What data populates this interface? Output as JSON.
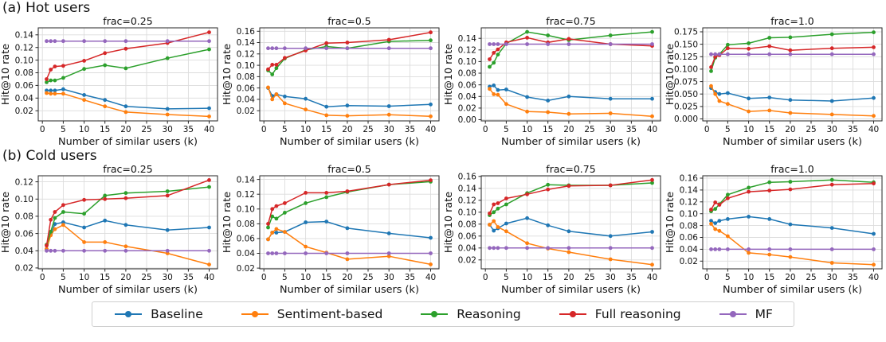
{
  "page_background": "#ffffff",
  "sections": [
    {
      "label": "(a) Hot users"
    },
    {
      "label": "(b) Cold users"
    }
  ],
  "legend": {
    "items": [
      {
        "label": "Baseline",
        "color": "#1f77b4"
      },
      {
        "label": "Sentiment-based",
        "color": "#ff7f0e"
      },
      {
        "label": "Reasoning",
        "color": "#2ca02c"
      },
      {
        "label": "Full reasoning",
        "color": "#d62728"
      },
      {
        "label": "MF",
        "color": "#9467bd"
      }
    ]
  },
  "chart_data": [
    {
      "type": "line",
      "section": "Hot users",
      "title": "frac=0.25",
      "xlabel": "Number of similar users (k)",
      "ylabel": "Hit@10 rate",
      "x": [
        1,
        2,
        3,
        5,
        10,
        15,
        20,
        30,
        40
      ],
      "xticks": [
        0,
        5,
        10,
        15,
        20,
        25,
        30,
        35,
        40
      ],
      "xlim": [
        -1,
        42
      ],
      "yticks": [
        0.02,
        0.04,
        0.06,
        0.08,
        0.1,
        0.12,
        0.14
      ],
      "ylim": [
        0.004,
        0.151
      ],
      "ytick_decimals": 2,
      "grid": true,
      "series": [
        {
          "name": "Baseline",
          "values": [
            0.052,
            0.052,
            0.052,
            0.054,
            0.045,
            0.037,
            0.027,
            0.023,
            0.024
          ]
        },
        {
          "name": "Sentiment-based",
          "values": [
            0.048,
            0.047,
            0.047,
            0.047,
            0.037,
            0.027,
            0.018,
            0.014,
            0.011
          ]
        },
        {
          "name": "Reasoning",
          "values": [
            0.065,
            0.068,
            0.068,
            0.072,
            0.086,
            0.092,
            0.087,
            0.103,
            0.117
          ]
        },
        {
          "name": "Full reasoning",
          "values": [
            0.07,
            0.085,
            0.09,
            0.091,
            0.099,
            0.111,
            0.118,
            0.127,
            0.144
          ]
        },
        {
          "name": "MF",
          "values": [
            0.13,
            0.13,
            0.13,
            0.13,
            0.13,
            0.13,
            0.13,
            0.13,
            0.13
          ]
        }
      ]
    },
    {
      "type": "line",
      "section": "Hot users",
      "title": "frac=0.5",
      "xlabel": "Number of similar users (k)",
      "ylabel": "Hit@10 rate",
      "x": [
        1,
        2,
        3,
        5,
        10,
        15,
        20,
        30,
        40
      ],
      "xticks": [
        0,
        5,
        10,
        15,
        20,
        25,
        30,
        35,
        40
      ],
      "xlim": [
        -1,
        42
      ],
      "yticks": [
        0.02,
        0.04,
        0.06,
        0.08,
        0.1,
        0.12,
        0.14,
        0.16
      ],
      "ylim": [
        0.002,
        0.166
      ],
      "ytick_decimals": 2,
      "grid": true,
      "series": [
        {
          "name": "Baseline",
          "values": [
            0.06,
            0.046,
            0.049,
            0.045,
            0.041,
            0.027,
            0.029,
            0.028,
            0.031
          ]
        },
        {
          "name": "Sentiment-based",
          "values": [
            0.061,
            0.04,
            0.049,
            0.033,
            0.022,
            0.012,
            0.011,
            0.013,
            0.01
          ]
        },
        {
          "name": "Reasoning",
          "values": [
            0.091,
            0.084,
            0.095,
            0.112,
            0.127,
            0.133,
            0.13,
            0.142,
            0.144
          ]
        },
        {
          "name": "Full reasoning",
          "values": [
            0.093,
            0.101,
            0.101,
            0.113,
            0.126,
            0.139,
            0.14,
            0.145,
            0.158
          ]
        },
        {
          "name": "MF",
          "values": [
            0.13,
            0.13,
            0.13,
            0.13,
            0.13,
            0.13,
            0.13,
            0.13,
            0.13
          ]
        }
      ]
    },
    {
      "type": "line",
      "section": "Hot users",
      "title": "frac=0.75",
      "xlabel": "Number of similar users (k)",
      "ylabel": "Hit@10 rate",
      "x": [
        1,
        2,
        3,
        5,
        10,
        15,
        20,
        30,
        40
      ],
      "xticks": [
        0,
        5,
        10,
        15,
        20,
        25,
        30,
        35,
        40
      ],
      "xlim": [
        -1,
        42
      ],
      "yticks": [
        0.0,
        0.02,
        0.04,
        0.06,
        0.08,
        0.1,
        0.12,
        0.14
      ],
      "ylim": [
        -0.002,
        0.158
      ],
      "ytick_decimals": 2,
      "grid": true,
      "series": [
        {
          "name": "Baseline",
          "values": [
            0.057,
            0.059,
            0.051,
            0.052,
            0.039,
            0.033,
            0.04,
            0.036,
            0.036
          ]
        },
        {
          "name": "Sentiment-based",
          "values": [
            0.053,
            0.044,
            0.043,
            0.027,
            0.014,
            0.013,
            0.01,
            0.011,
            0.006
          ]
        },
        {
          "name": "Reasoning",
          "values": [
            0.091,
            0.098,
            0.112,
            0.131,
            0.151,
            0.145,
            0.137,
            0.145,
            0.151
          ]
        },
        {
          "name": "Full reasoning",
          "values": [
            0.104,
            0.115,
            0.121,
            0.133,
            0.141,
            0.133,
            0.139,
            0.13,
            0.127
          ]
        },
        {
          "name": "MF",
          "values": [
            0.13,
            0.13,
            0.13,
            0.13,
            0.13,
            0.13,
            0.13,
            0.13,
            0.13
          ]
        }
      ]
    },
    {
      "type": "line",
      "section": "Hot users",
      "title": "frac=1.0",
      "xlabel": "Number of similar users (k)",
      "ylabel": "Hit@10 rate",
      "x": [
        1,
        2,
        3,
        5,
        10,
        15,
        20,
        30,
        40
      ],
      "xticks": [
        0,
        5,
        10,
        15,
        20,
        25,
        30,
        35,
        40
      ],
      "xlim": [
        -1,
        42
      ],
      "yticks": [
        0.0,
        0.025,
        0.05,
        0.075,
        0.1,
        0.125,
        0.15,
        0.175
      ],
      "ylim": [
        -0.004,
        0.183
      ],
      "ytick_decimals": 3,
      "grid": true,
      "series": [
        {
          "name": "Baseline",
          "values": [
            0.062,
            0.054,
            0.05,
            0.052,
            0.041,
            0.043,
            0.038,
            0.036,
            0.042
          ]
        },
        {
          "name": "Sentiment-based",
          "values": [
            0.066,
            0.05,
            0.036,
            0.03,
            0.015,
            0.017,
            0.012,
            0.009,
            0.006
          ]
        },
        {
          "name": "Reasoning",
          "values": [
            0.096,
            0.123,
            0.13,
            0.149,
            0.152,
            0.163,
            0.164,
            0.17,
            0.174
          ]
        },
        {
          "name": "Full reasoning",
          "values": [
            0.104,
            0.125,
            0.128,
            0.142,
            0.141,
            0.146,
            0.138,
            0.142,
            0.144
          ]
        },
        {
          "name": "MF",
          "values": [
            0.13,
            0.13,
            0.13,
            0.13,
            0.13,
            0.13,
            0.13,
            0.13,
            0.13
          ]
        }
      ]
    },
    {
      "type": "line",
      "section": "Cold users",
      "title": "frac=0.25",
      "xlabel": "Number of similar users (k)",
      "ylabel": "Hit@10 rate",
      "x": [
        1,
        2,
        3,
        5,
        10,
        15,
        20,
        30,
        40
      ],
      "xticks": [
        0,
        5,
        10,
        15,
        20,
        25,
        30,
        35,
        40
      ],
      "xlim": [
        -1,
        42
      ],
      "yticks": [
        0.02,
        0.04,
        0.06,
        0.08,
        0.1,
        0.12
      ],
      "ylim": [
        0.019,
        0.127
      ],
      "ytick_decimals": 2,
      "grid": true,
      "series": [
        {
          "name": "Baseline",
          "values": [
            0.042,
            0.059,
            0.071,
            0.073,
            0.067,
            0.075,
            0.07,
            0.064,
            0.067
          ]
        },
        {
          "name": "Sentiment-based",
          "values": [
            0.042,
            0.058,
            0.065,
            0.07,
            0.05,
            0.05,
            0.045,
            0.037,
            0.024
          ]
        },
        {
          "name": "Reasoning",
          "values": [
            0.047,
            0.062,
            0.078,
            0.085,
            0.083,
            0.104,
            0.107,
            0.109,
            0.114
          ]
        },
        {
          "name": "Full reasoning",
          "values": [
            0.046,
            0.076,
            0.085,
            0.093,
            0.099,
            0.1,
            0.101,
            0.104,
            0.122
          ]
        },
        {
          "name": "MF",
          "values": [
            0.04,
            0.04,
            0.04,
            0.04,
            0.04,
            0.04,
            0.04,
            0.04,
            0.04
          ]
        }
      ]
    },
    {
      "type": "line",
      "section": "Cold users",
      "title": "frac=0.5",
      "xlabel": "Number of similar users (k)",
      "ylabel": "Hit@10 rate",
      "x": [
        1,
        2,
        3,
        5,
        10,
        15,
        20,
        30,
        40
      ],
      "xticks": [
        0,
        5,
        10,
        15,
        20,
        25,
        30,
        35,
        40
      ],
      "xlim": [
        -1,
        42
      ],
      "yticks": [
        0.02,
        0.04,
        0.06,
        0.08,
        0.1,
        0.12,
        0.14
      ],
      "ylim": [
        0.019,
        0.145
      ],
      "ytick_decimals": 2,
      "grid": true,
      "series": [
        {
          "name": "Baseline",
          "values": [
            0.059,
            0.068,
            0.068,
            0.069,
            0.082,
            0.083,
            0.074,
            0.067,
            0.061
          ]
        },
        {
          "name": "Sentiment-based",
          "values": [
            0.059,
            0.068,
            0.073,
            0.069,
            0.049,
            0.041,
            0.032,
            0.036,
            0.025
          ]
        },
        {
          "name": "Reasoning",
          "values": [
            0.075,
            0.09,
            0.087,
            0.095,
            0.108,
            0.116,
            0.123,
            0.133,
            0.137
          ]
        },
        {
          "name": "Full reasoning",
          "values": [
            0.08,
            0.1,
            0.104,
            0.108,
            0.122,
            0.122,
            0.124,
            0.133,
            0.139
          ]
        },
        {
          "name": "MF",
          "values": [
            0.04,
            0.04,
            0.04,
            0.04,
            0.04,
            0.04,
            0.04,
            0.04,
            0.04
          ]
        }
      ]
    },
    {
      "type": "line",
      "section": "Cold users",
      "title": "frac=0.75",
      "xlabel": "Number of similar users (k)",
      "ylabel": "Hit@10 rate",
      "x": [
        1,
        2,
        3,
        5,
        10,
        15,
        20,
        30,
        40
      ],
      "xticks": [
        0,
        5,
        10,
        15,
        20,
        25,
        30,
        35,
        40
      ],
      "xlim": [
        -1,
        42
      ],
      "yticks": [
        0.02,
        0.04,
        0.06,
        0.08,
        0.1,
        0.12,
        0.14,
        0.16
      ],
      "ylim": [
        0.005,
        0.161
      ],
      "ytick_decimals": 2,
      "grid": true,
      "series": [
        {
          "name": "Baseline",
          "values": [
            0.079,
            0.069,
            0.073,
            0.081,
            0.09,
            0.078,
            0.068,
            0.06,
            0.067
          ]
        },
        {
          "name": "Sentiment-based",
          "values": [
            0.079,
            0.085,
            0.075,
            0.068,
            0.048,
            0.039,
            0.033,
            0.021,
            0.012
          ]
        },
        {
          "name": "Reasoning",
          "values": [
            0.095,
            0.1,
            0.106,
            0.113,
            0.132,
            0.146,
            0.145,
            0.145,
            0.149
          ]
        },
        {
          "name": "Full reasoning",
          "values": [
            0.098,
            0.113,
            0.115,
            0.123,
            0.13,
            0.138,
            0.144,
            0.145,
            0.154
          ]
        },
        {
          "name": "MF",
          "values": [
            0.04,
            0.04,
            0.04,
            0.04,
            0.04,
            0.04,
            0.04,
            0.04,
            0.04
          ]
        }
      ]
    },
    {
      "type": "line",
      "section": "Cold users",
      "title": "frac=1.0",
      "xlabel": "Number of similar users (k)",
      "ylabel": "Hit@10 rate",
      "x": [
        1,
        2,
        3,
        5,
        10,
        15,
        20,
        30,
        40
      ],
      "xticks": [
        0,
        5,
        10,
        15,
        20,
        25,
        30,
        35,
        40
      ],
      "xlim": [
        -1,
        42
      ],
      "yticks": [
        0.02,
        0.04,
        0.06,
        0.08,
        0.1,
        0.12,
        0.14,
        0.16
      ],
      "ylim": [
        0.007,
        0.164
      ],
      "ytick_decimals": 2,
      "grid": true,
      "series": [
        {
          "name": "Baseline",
          "values": [
            0.088,
            0.084,
            0.088,
            0.091,
            0.095,
            0.091,
            0.082,
            0.076,
            0.066
          ]
        },
        {
          "name": "Sentiment-based",
          "values": [
            0.083,
            0.074,
            0.071,
            0.062,
            0.034,
            0.031,
            0.027,
            0.017,
            0.014
          ]
        },
        {
          "name": "Reasoning",
          "values": [
            0.104,
            0.108,
            0.116,
            0.132,
            0.144,
            0.153,
            0.154,
            0.157,
            0.153
          ]
        },
        {
          "name": "Full reasoning",
          "values": [
            0.107,
            0.119,
            0.115,
            0.126,
            0.137,
            0.139,
            0.141,
            0.149,
            0.151
          ]
        },
        {
          "name": "MF",
          "values": [
            0.04,
            0.04,
            0.04,
            0.04,
            0.04,
            0.04,
            0.04,
            0.04,
            0.04
          ]
        }
      ]
    }
  ]
}
